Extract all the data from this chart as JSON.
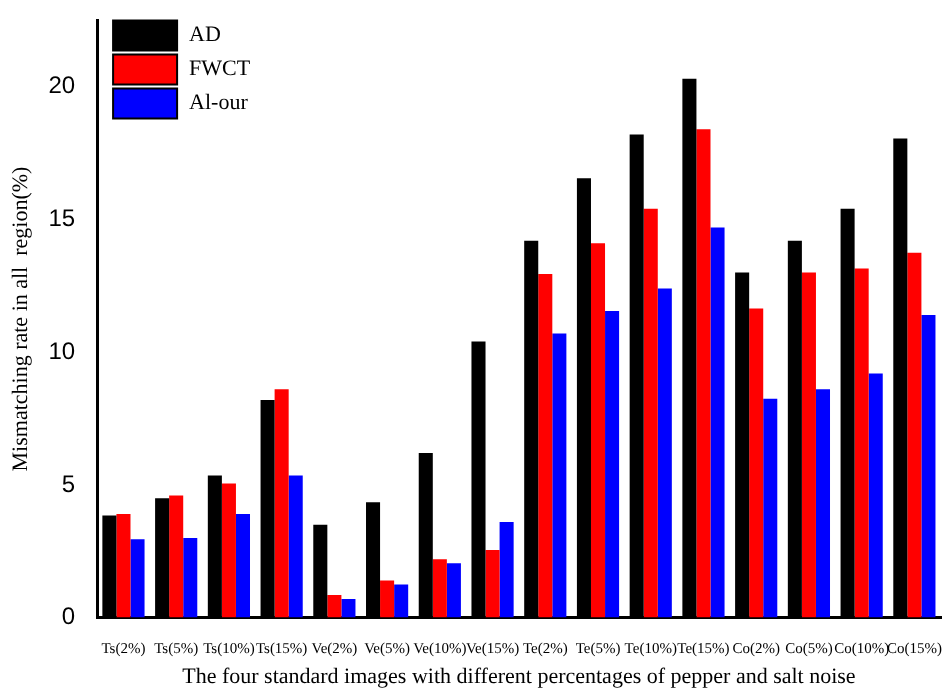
{
  "chart_data": {
    "type": "bar",
    "xlabel": "The four standard images with different percentages of pepper and salt noise",
    "ylabel": "Mismatching rate in all  region(%)",
    "categories": [
      "Ts(2%)",
      "Ts(5%)",
      "Ts(10%)",
      "Ts(15%)",
      "Ve(2%)",
      "Ve(5%)",
      "Ve(10%)",
      "Ve(15%)",
      "Te(2%)",
      "Te(5%)",
      "Te(10%)",
      "Te(15%)",
      "Co(2%)",
      "Co(5%)",
      "Co(10%)",
      "Co(15%)"
    ],
    "series": [
      {
        "name": "AD",
        "color": "#000000",
        "values": [
          3.85,
          4.5,
          5.35,
          8.2,
          3.5,
          4.35,
          6.2,
          10.4,
          14.2,
          16.55,
          18.2,
          20.3,
          13.0,
          14.2,
          15.4,
          18.05
        ]
      },
      {
        "name": "FWCT",
        "color": "#ff0000",
        "values": [
          3.9,
          4.6,
          5.05,
          8.6,
          0.85,
          1.4,
          2.2,
          2.55,
          12.95,
          14.1,
          15.4,
          18.4,
          11.65,
          13.0,
          13.15,
          13.75
        ]
      },
      {
        "name": "Al-our",
        "color": "#0000ff",
        "values": [
          2.95,
          3.0,
          3.9,
          5.35,
          0.7,
          1.25,
          2.05,
          3.6,
          10.7,
          11.55,
          12.4,
          14.7,
          8.25,
          8.6,
          9.2,
          11.4
        ]
      }
    ],
    "ylim": [
      0,
      22.5
    ],
    "yticks": [
      0,
      5,
      10,
      15,
      20
    ],
    "grid": false,
    "legend": "top left"
  }
}
